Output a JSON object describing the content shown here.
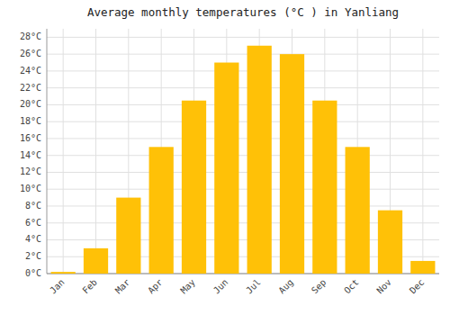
{
  "chart_data": {
    "type": "bar",
    "title": "Average monthly temperatures (°C ) in Yanliang",
    "categories": [
      "Jan",
      "Feb",
      "Mar",
      "Apr",
      "May",
      "Jun",
      "Jul",
      "Aug",
      "Sep",
      "Oct",
      "Nov",
      "Dec"
    ],
    "values": [
      0.2,
      3.0,
      9.0,
      15.0,
      20.5,
      25.0,
      27.0,
      26.0,
      20.5,
      15.0,
      7.5,
      1.5
    ],
    "color": "#FFC107",
    "ylim": [
      0,
      29
    ],
    "yticks": [
      {
        "value": 0,
        "label": "0°C"
      },
      {
        "value": 2,
        "label": "2°C"
      },
      {
        "value": 4,
        "label": "4°C"
      },
      {
        "value": 6,
        "label": "6°C"
      },
      {
        "value": 8,
        "label": "8°C"
      },
      {
        "value": 10,
        "label": "10°C"
      },
      {
        "value": 12,
        "label": "12°C"
      },
      {
        "value": 14,
        "label": "14°C"
      },
      {
        "value": 16,
        "label": "16°C"
      },
      {
        "value": 18,
        "label": "18°C"
      },
      {
        "value": 20,
        "label": "20°C"
      },
      {
        "value": 22,
        "label": "22°C"
      },
      {
        "value": 24,
        "label": "24°C"
      },
      {
        "value": 26,
        "label": "26°C"
      },
      {
        "value": 28,
        "label": "28°C"
      }
    ],
    "grid": true
  }
}
